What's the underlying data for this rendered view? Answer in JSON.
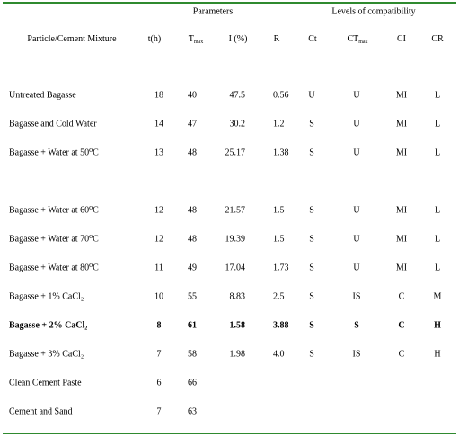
{
  "header": {
    "group_parameters": "Parameters",
    "group_levels": "Levels of compatibility",
    "columns": [
      {
        "text": "Particle/Cement Mixture"
      },
      {
        "text": "t(h)"
      },
      {
        "text": "T",
        "sub": "max"
      },
      {
        "text": "I (%)"
      },
      {
        "text": "R"
      },
      {
        "text": "Ct"
      },
      {
        "text": "CT",
        "sub": "max"
      },
      {
        "text": "CI"
      },
      {
        "text": "CR"
      }
    ]
  },
  "table": {
    "rows": [
      {
        "label": "Untreated Bagasse",
        "cells": [
          "18",
          "40",
          "47.5",
          "0.56",
          "U",
          "U",
          "MI",
          "L"
        ]
      },
      {
        "label": "Bagasse and Cold Water",
        "cells": [
          "14",
          "47",
          "30.2",
          "1.2",
          "S",
          "U",
          "MI",
          "L"
        ]
      },
      {
        "label": "Bagasse + Water at 50⁰C",
        "cells": [
          "13",
          "48",
          "25.17",
          "1.38",
          "S",
          "U",
          "MI",
          "L"
        ]
      },
      {
        "label": "Bagasse + Water at 60⁰C",
        "cells": [
          "12",
          "48",
          "21.57",
          "1.5",
          "S",
          "U",
          "MI",
          "L"
        ]
      },
      {
        "label": "Bagasse + Water at 70⁰C",
        "cells": [
          "12",
          "48",
          "19.39",
          "1.5",
          "S",
          "U",
          "MI",
          "L"
        ]
      },
      {
        "label": "Bagasse + Water at 80⁰C",
        "cells": [
          "11",
          "49",
          "17.04",
          "1.73",
          "S",
          "U",
          "MI",
          "L"
        ]
      },
      {
        "label": "Bagasse + 1% CaCl₂",
        "cells": [
          "10",
          "55",
          "8.83",
          "2.5",
          "S",
          "IS",
          "C",
          "M"
        ]
      },
      {
        "label": "Bagasse + 2% CaCl₂",
        "cells": [
          "8",
          "61",
          "1.58",
          "3.88",
          "S",
          "S",
          "C",
          "H"
        ],
        "bold": true
      },
      {
        "label": "Bagasse + 3% CaCl₂",
        "cells": [
          "7",
          "58",
          "1.98",
          "4.0",
          "S",
          "IS",
          "C",
          "H"
        ]
      },
      {
        "label": "Clean Cement Paste",
        "cells": [
          "6",
          "66"
        ]
      },
      {
        "label": "Cement and Sand",
        "cells": [
          "7",
          "63"
        ]
      }
    ]
  }
}
